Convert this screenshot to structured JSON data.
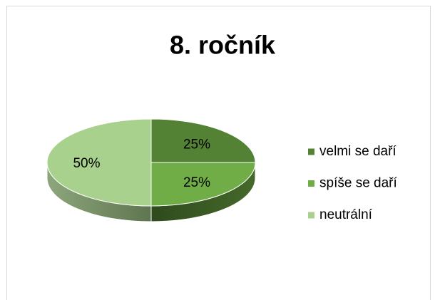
{
  "chart_data": {
    "type": "pie",
    "title": "8. ročník",
    "categories": [
      "velmi se daří",
      "spíše se daří",
      "neutrální"
    ],
    "values": [
      25,
      25,
      50
    ],
    "value_labels": [
      "25%",
      "25%",
      "50%"
    ],
    "colors": [
      "#548235",
      "#70ad47",
      "#a9d18e"
    ],
    "legend": "right"
  }
}
